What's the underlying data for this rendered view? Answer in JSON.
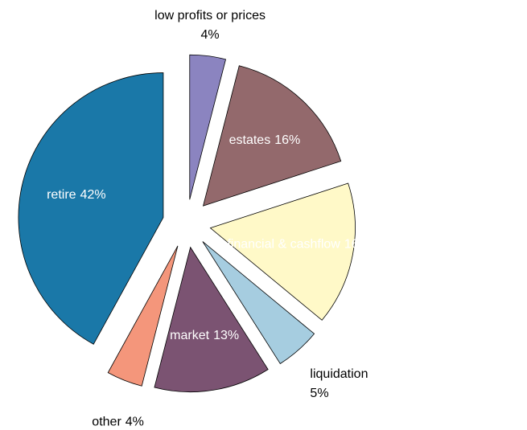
{
  "chart_data": {
    "type": "pie",
    "categories": [
      "low profits or prices",
      "estates",
      "financial & cashflow",
      "liquidation",
      "market",
      "other",
      "retire"
    ],
    "values": [
      4,
      16,
      16,
      5,
      13,
      4,
      42
    ],
    "value_labels": [
      "4%",
      "16%",
      "16%",
      "5%",
      "13%",
      "4%",
      "42%"
    ],
    "colors": [
      "#8b84c0",
      "#93696c",
      "#fff9c8",
      "#a6cde0",
      "#7b5372",
      "#f4967b",
      "#1a78a8"
    ]
  }
}
